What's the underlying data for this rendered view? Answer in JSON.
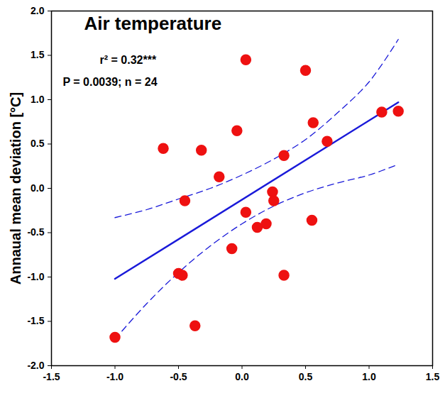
{
  "chart_data": {
    "type": "scatter",
    "title": "Air temperature",
    "annotations": [
      "r² = 0.32***",
      "P = 0.0039; n = 24"
    ],
    "y_label": "Annaual mean deviation [°C]",
    "x": [
      -1.0,
      -0.62,
      -0.5,
      -0.47,
      -0.45,
      -0.37,
      -0.32,
      -0.18,
      -0.08,
      -0.04,
      0.03,
      0.03,
      0.12,
      0.19,
      0.24,
      0.25,
      0.33,
      0.33,
      0.5,
      0.55,
      0.56,
      0.67,
      1.1,
      1.23
    ],
    "values": [
      -1.68,
      0.45,
      -0.96,
      -0.98,
      -0.14,
      -1.55,
      0.43,
      0.13,
      -0.68,
      0.65,
      1.45,
      -0.27,
      -0.44,
      -0.4,
      -0.04,
      -0.14,
      0.37,
      -0.98,
      1.33,
      -0.36,
      0.74,
      0.53,
      0.86,
      0.87
    ],
    "color": "#ee1111",
    "marker": "circle",
    "fit_line": {
      "x": [
        -1.0,
        1.23
      ],
      "values": [
        -1.02,
        0.97
      ],
      "color": "#1a1ad9",
      "line_style": "solid"
    },
    "confidence_band": {
      "x": [
        -1.0,
        -0.75,
        -0.5,
        -0.25,
        0.0,
        0.25,
        0.5,
        0.75,
        1.0,
        1.23
      ],
      "upper": [
        -0.33,
        -0.24,
        -0.12,
        0.0,
        0.15,
        0.33,
        0.55,
        0.85,
        1.2,
        1.68
      ],
      "lower": [
        -1.7,
        -1.3,
        -0.95,
        -0.65,
        -0.4,
        -0.2,
        -0.05,
        0.06,
        0.15,
        0.27
      ],
      "color": "#1a1ad9",
      "line_style": "dashed"
    },
    "xlim": [
      -1.5,
      1.5
    ],
    "ylim": [
      -2.0,
      2.0
    ],
    "xticks": [
      {
        "value": -1.5,
        "label": "-1.5"
      },
      {
        "value": -1.0,
        "label": "-1.0"
      },
      {
        "value": -0.5,
        "label": "-0.5"
      },
      {
        "value": 0,
        "label": "0.0"
      },
      {
        "value": 0.5,
        "label": "0.5"
      },
      {
        "value": 1.0,
        "label": "1.0"
      },
      {
        "value": 1.5,
        "label": "1.5"
      }
    ],
    "yticks": [
      {
        "value": -2.0,
        "label": "-2.0"
      },
      {
        "value": -1.5,
        "label": "-1.5"
      },
      {
        "value": -1.0,
        "label": "-1.0"
      },
      {
        "value": -0.5,
        "label": "-0.5"
      },
      {
        "value": 0,
        "label": "0.0"
      },
      {
        "value": 0.5,
        "label": "0.5"
      },
      {
        "value": 1.0,
        "label": "1.0"
      },
      {
        "value": 1.5,
        "label": "1.5"
      },
      {
        "value": 2.0,
        "label": "2.0"
      }
    ],
    "grid": false
  }
}
